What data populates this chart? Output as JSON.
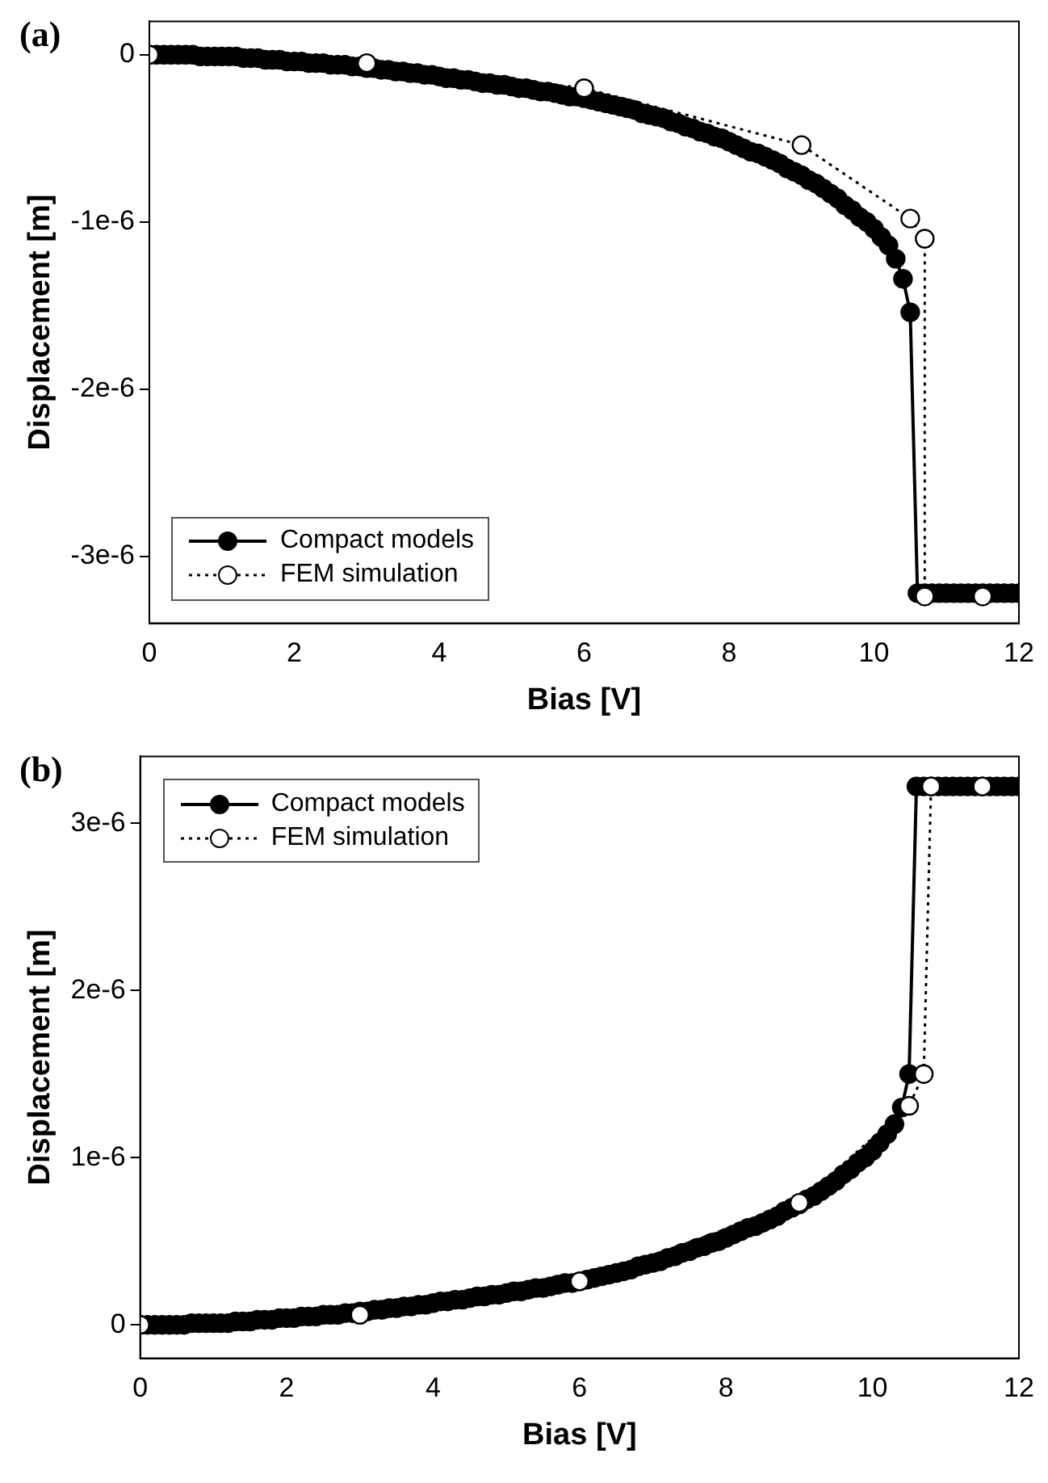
{
  "chart_data": [
    {
      "type": "line",
      "title": "(a)",
      "xlabel": "Bias [V]",
      "ylabel": "Displacement [m]",
      "xlim": [
        0,
        12
      ],
      "xticks": [
        0,
        2,
        4,
        6,
        8,
        10,
        12
      ],
      "ylim": [
        -3.4e-06,
        2e-07
      ],
      "yticks": [
        {
          "value": 0,
          "label": "0"
        },
        {
          "value": -1e-06,
          "label": "-1e-6"
        },
        {
          "value": -2e-06,
          "label": "-2e-6"
        },
        {
          "value": -3e-06,
          "label": "-3e-6"
        }
      ],
      "grid": false,
      "legend": "bottom left",
      "marker": "circle",
      "series": [
        {
          "name": "Compact models",
          "color": "#000000",
          "line_style": "solid",
          "x": [
            0,
            0.1,
            0.2,
            0.3,
            0.4,
            0.5,
            0.6,
            0.7,
            0.8,
            0.9,
            1,
            1.1,
            1.2,
            1.3,
            1.4,
            1.5,
            1.6,
            1.7,
            1.8,
            1.9,
            2,
            2.1,
            2.2,
            2.3,
            2.4,
            2.5,
            2.6,
            2.7,
            2.8,
            2.9,
            3,
            3.1,
            3.2,
            3.3,
            3.4,
            3.5,
            3.6,
            3.7,
            3.8,
            3.9,
            4,
            4.1,
            4.2,
            4.3,
            4.4,
            4.5,
            4.6,
            4.7,
            4.8,
            4.9,
            5,
            5.1,
            5.2,
            5.3,
            5.4,
            5.5,
            5.6,
            5.7,
            5.8,
            5.9,
            6,
            6.1,
            6.2,
            6.3,
            6.4,
            6.5,
            6.6,
            6.7,
            6.8,
            6.9,
            7,
            7.1,
            7.2,
            7.3,
            7.4,
            7.5,
            7.6,
            7.7,
            7.8,
            7.9,
            8,
            8.1,
            8.2,
            8.3,
            8.4,
            8.5,
            8.6,
            8.7,
            8.8,
            8.9,
            9,
            9.1,
            9.2,
            9.3,
            9.4,
            9.5,
            9.6,
            9.7,
            9.8,
            9.9,
            10,
            10.1,
            10.2,
            10.3,
            10.4,
            10.5,
            10.6,
            10.7,
            10.8,
            10.9,
            11,
            11.1,
            11.2,
            11.3,
            11.4,
            11.5,
            11.6,
            11.7,
            11.8,
            11.9,
            12
          ],
          "values": [
            0,
            0,
            0,
            0,
            0,
            0,
            0,
            -1e-08,
            -1e-08,
            -1e-08,
            -1e-08,
            -1e-08,
            -1e-08,
            -2e-08,
            -2e-08,
            -2e-08,
            -3e-08,
            -3e-08,
            -3e-08,
            -4e-08,
            -4e-08,
            -4e-08,
            -5e-08,
            -5e-08,
            -5e-08,
            -6e-08,
            -6e-08,
            -6e-08,
            -7e-08,
            -7e-08,
            -8e-08,
            -8e-08,
            -9e-08,
            -9e-08,
            -1e-07,
            -1e-07,
            -1.1e-07,
            -1.1e-07,
            -1.2e-07,
            -1.2e-07,
            -1.3e-07,
            -1.4e-07,
            -1.4e-07,
            -1.5e-07,
            -1.5e-07,
            -1.6e-07,
            -1.7e-07,
            -1.7e-07,
            -1.8e-07,
            -1.8e-07,
            -1.9e-07,
            -2e-07,
            -2e-07,
            -2.1e-07,
            -2.2e-07,
            -2.2e-07,
            -2.3e-07,
            -2.4e-07,
            -2.5e-07,
            -2.5e-07,
            -2.6e-07,
            -2.7e-07,
            -2.8e-07,
            -2.9e-07,
            -3e-07,
            -3.1e-07,
            -3.2e-07,
            -3.3e-07,
            -3.5e-07,
            -3.6e-07,
            -3.7e-07,
            -3.8e-07,
            -4e-07,
            -4.1e-07,
            -4.3e-07,
            -4.4e-07,
            -4.6e-07,
            -4.7e-07,
            -4.9e-07,
            -5e-07,
            -5.2e-07,
            -5.4e-07,
            -5.6e-07,
            -5.8e-07,
            -5.9e-07,
            -6.1e-07,
            -6.3e-07,
            -6.5e-07,
            -6.8e-07,
            -7e-07,
            -7.2e-07,
            -7.5e-07,
            -7.7e-07,
            -8e-07,
            -8.3e-07,
            -8.6e-07,
            -9e-07,
            -9.3e-07,
            -9.7e-07,
            -1e-06,
            -1.04e-06,
            -1.09e-06,
            -1.14e-06,
            -1.22e-06,
            -1.34e-06,
            -1.54e-06,
            -3.22e-06,
            -3.22e-06,
            -3.22e-06,
            -3.22e-06,
            -3.22e-06,
            -3.22e-06,
            -3.22e-06,
            -3.22e-06,
            -3.22e-06,
            -3.22e-06,
            -3.22e-06,
            -3.22e-06,
            -3.22e-06,
            -3.22e-06,
            -3.22e-06
          ]
        },
        {
          "name": "FEM simulation",
          "color": "#000000",
          "line_style": "dotted",
          "x": [
            0,
            3,
            6,
            9,
            10.5,
            10.7,
            10.7,
            11.5
          ],
          "values": [
            0,
            -5e-08,
            -2e-07,
            -5.4e-07,
            -9.8e-07,
            -1.1e-06,
            -3.24e-06,
            -3.24e-06
          ]
        }
      ]
    },
    {
      "type": "line",
      "title": "(b)",
      "xlabel": "Bias [V]",
      "ylabel": "Displacement [m]",
      "xlim": [
        0,
        12
      ],
      "xticks": [
        0,
        2,
        4,
        6,
        8,
        10,
        12
      ],
      "ylim": [
        -2e-07,
        3.4e-06
      ],
      "yticks": [
        {
          "value": 0,
          "label": "0"
        },
        {
          "value": 1e-06,
          "label": "1e-6"
        },
        {
          "value": 2e-06,
          "label": "2e-6"
        },
        {
          "value": 3e-06,
          "label": "3e-6"
        }
      ],
      "grid": false,
      "legend": "top left",
      "marker": "circle",
      "series": [
        {
          "name": "Compact models",
          "color": "#000000",
          "line_style": "solid",
          "x": [
            0,
            0.1,
            0.2,
            0.3,
            0.4,
            0.5,
            0.6,
            0.7,
            0.8,
            0.9,
            1,
            1.1,
            1.2,
            1.3,
            1.4,
            1.5,
            1.6,
            1.7,
            1.8,
            1.9,
            2,
            2.1,
            2.2,
            2.3,
            2.4,
            2.5,
            2.6,
            2.7,
            2.8,
            2.9,
            3,
            3.1,
            3.2,
            3.3,
            3.4,
            3.5,
            3.6,
            3.7,
            3.8,
            3.9,
            4,
            4.1,
            4.2,
            4.3,
            4.4,
            4.5,
            4.6,
            4.7,
            4.8,
            4.9,
            5,
            5.1,
            5.2,
            5.3,
            5.4,
            5.5,
            5.6,
            5.7,
            5.8,
            5.9,
            6,
            6.1,
            6.2,
            6.3,
            6.4,
            6.5,
            6.6,
            6.7,
            6.8,
            6.9,
            7,
            7.1,
            7.2,
            7.3,
            7.4,
            7.5,
            7.6,
            7.7,
            7.8,
            7.9,
            8,
            8.1,
            8.2,
            8.3,
            8.4,
            8.5,
            8.6,
            8.7,
            8.8,
            8.9,
            9,
            9.1,
            9.2,
            9.3,
            9.4,
            9.5,
            9.6,
            9.7,
            9.8,
            9.9,
            10,
            10.1,
            10.2,
            10.3,
            10.4,
            10.5,
            10.6,
            10.7,
            10.8,
            10.9,
            11,
            11.1,
            11.2,
            11.3,
            11.4,
            11.5,
            11.6,
            11.7,
            11.8,
            11.9,
            12
          ],
          "values": [
            0,
            0,
            0,
            0,
            0,
            0,
            0,
            1e-08,
            1e-08,
            1e-08,
            1e-08,
            1e-08,
            1e-08,
            2e-08,
            2e-08,
            2e-08,
            3e-08,
            3e-08,
            3e-08,
            4e-08,
            4e-08,
            4e-08,
            5e-08,
            5e-08,
            5e-08,
            6e-08,
            6e-08,
            6e-08,
            7e-08,
            7e-08,
            8e-08,
            8e-08,
            9e-08,
            9e-08,
            1e-07,
            1e-07,
            1.1e-07,
            1.1e-07,
            1.2e-07,
            1.2e-07,
            1.3e-07,
            1.4e-07,
            1.4e-07,
            1.5e-07,
            1.5e-07,
            1.6e-07,
            1.7e-07,
            1.7e-07,
            1.8e-07,
            1.8e-07,
            1.9e-07,
            2e-07,
            2e-07,
            2.1e-07,
            2.2e-07,
            2.2e-07,
            2.3e-07,
            2.4e-07,
            2.5e-07,
            2.5e-07,
            2.6e-07,
            2.7e-07,
            2.8e-07,
            2.9e-07,
            3e-07,
            3.1e-07,
            3.2e-07,
            3.3e-07,
            3.5e-07,
            3.6e-07,
            3.7e-07,
            3.8e-07,
            4e-07,
            4.1e-07,
            4.3e-07,
            4.4e-07,
            4.6e-07,
            4.7e-07,
            4.9e-07,
            5e-07,
            5.2e-07,
            5.4e-07,
            5.6e-07,
            5.8e-07,
            5.9e-07,
            6.1e-07,
            6.3e-07,
            6.5e-07,
            6.8e-07,
            7e-07,
            7.2e-07,
            7.5e-07,
            7.7e-07,
            8e-07,
            8.3e-07,
            8.6e-07,
            9e-07,
            9.3e-07,
            9.7e-07,
            1e-06,
            1.04e-06,
            1.09e-06,
            1.14e-06,
            1.2e-06,
            1.3e-06,
            1.5e-06,
            3.22e-06,
            3.22e-06,
            3.22e-06,
            3.22e-06,
            3.22e-06,
            3.22e-06,
            3.22e-06,
            3.22e-06,
            3.22e-06,
            3.22e-06,
            3.22e-06,
            3.22e-06,
            3.22e-06,
            3.22e-06,
            3.22e-06
          ]
        },
        {
          "name": "FEM simulation",
          "color": "#000000",
          "line_style": "dotted",
          "x": [
            0,
            3,
            6,
            9,
            10.5,
            10.7,
            10.8,
            11.5
          ],
          "values": [
            0,
            6e-08,
            2.6e-07,
            7.3e-07,
            1.31e-06,
            1.5e-06,
            3.22e-06,
            3.22e-06
          ]
        }
      ]
    }
  ]
}
